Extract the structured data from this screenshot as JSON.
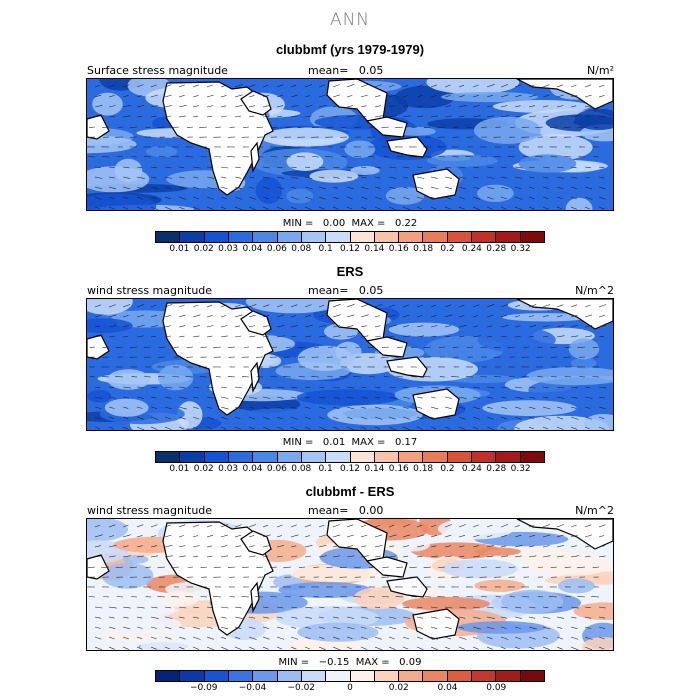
{
  "title": "ANN",
  "colors": {
    "abs": [
      "#08306b",
      "#0a3fa8",
      "#1453d4",
      "#2a6be0",
      "#4a88e6",
      "#78a9ef",
      "#a3c6f6",
      "#c9ddfa",
      "#fde4d6",
      "#f8c3a8",
      "#f2a07f",
      "#e97c5a",
      "#d9533a",
      "#c0312a",
      "#a41a18",
      "#7f0a0a"
    ],
    "diff": [
      "#06237a",
      "#0b3aa8",
      "#1753d3",
      "#3a74e2",
      "#6a98ea",
      "#9cbdf3",
      "#c9dbf9",
      "#eef3fc",
      "#fdf1ea",
      "#fbd2bc",
      "#f4ad8c",
      "#ea8763",
      "#dc5e3e",
      "#c2382a",
      "#a31d18",
      "#7a0909"
    ]
  },
  "panels": [
    {
      "id": "model",
      "title": "clubbmf (yrs 1979-1979)",
      "left_label": "Surface stress magnitude",
      "mean_label": "mean=",
      "mean_value": "0.05",
      "units": "N/m²",
      "min_label": "MIN =",
      "min_value": "0.00",
      "max_label": "MAX =",
      "max_value": "0.22",
      "colorbar": [
        "0.01",
        "0.02",
        "0.03",
        "0.04",
        "0.06",
        "0.08",
        "0.1",
        "0.12",
        "0.14",
        "0.16",
        "0.18",
        "0.2",
        "0.24",
        "0.28",
        "0.32"
      ]
    },
    {
      "id": "obs",
      "title": "ERS",
      "left_label": "wind stress magnitude",
      "mean_label": "mean=",
      "mean_value": "0.05",
      "units": "N/m^2",
      "min_label": "MIN =",
      "min_value": "0.01",
      "max_label": "MAX =",
      "max_value": "0.17",
      "colorbar": [
        "0.01",
        "0.02",
        "0.03",
        "0.04",
        "0.06",
        "0.08",
        "0.1",
        "0.12",
        "0.14",
        "0.16",
        "0.18",
        "0.2",
        "0.24",
        "0.28",
        "0.32"
      ]
    },
    {
      "id": "diff",
      "title": "clubbmf - ERS",
      "left_label": "wind stress magnitude",
      "mean_label": "mean=",
      "mean_value": "0.00",
      "units": "N/m^2",
      "min_label": "MIN =",
      "min_value": "−0.15",
      "max_label": "MAX =",
      "max_value": "0.09",
      "colorbar": [
        "",
        "−0.09",
        "",
        "−0.04",
        "",
        "−0.02",
        "",
        "0",
        "",
        "0.02",
        "",
        "0.04",
        "",
        "0.09",
        ""
      ]
    }
  ]
}
